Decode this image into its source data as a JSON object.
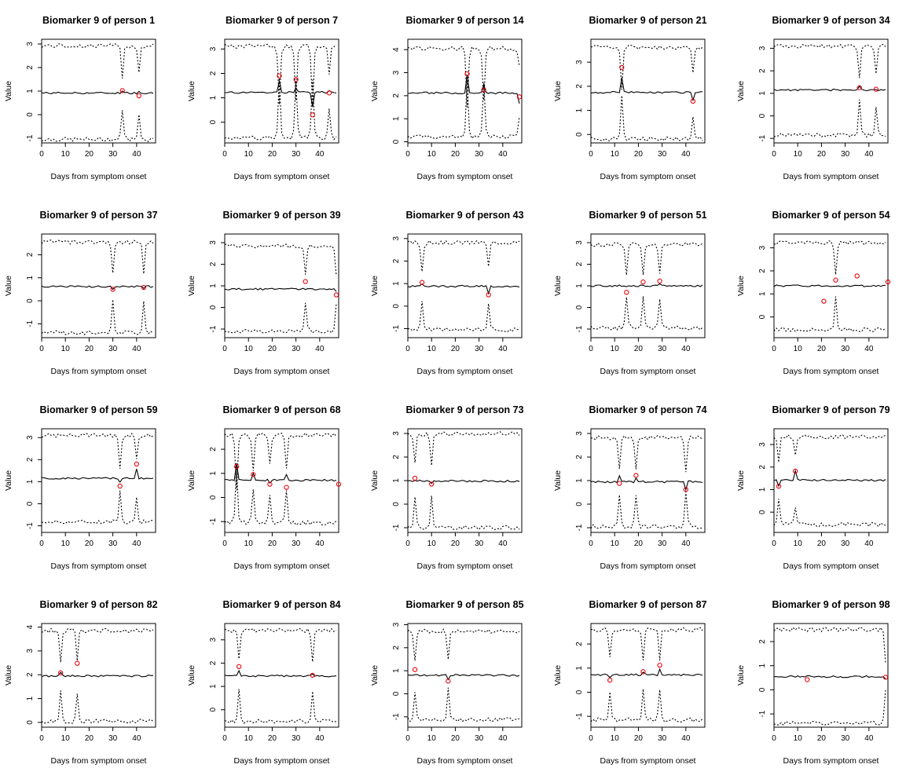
{
  "figure": {
    "xlabel": "Days from symptom onset",
    "ylabel": "Value"
  },
  "colors": {
    "observed": "#e8000b",
    "line": "#000000"
  },
  "chart_data": [
    {
      "type": "line",
      "title": "Biomarker 9 of person 1",
      "xlabel": "Days from symptom onset",
      "ylabel": "Value",
      "xlim": [
        0,
        48
      ],
      "ylim": [
        -1.2,
        3.2
      ],
      "xticks": [
        0,
        10,
        20,
        30,
        40
      ],
      "yticks": [
        -1,
        0,
        1,
        2,
        3
      ],
      "base": 0.92,
      "upper": 2.92,
      "lower": -1.05,
      "spikes": [
        [
          34,
          0.1,
          1.3
        ],
        [
          41,
          0.1,
          1.1
        ]
      ],
      "observed": {
        "x": [
          34,
          41
        ],
        "y": [
          1.02,
          0.8
        ]
      }
    },
    {
      "type": "line",
      "title": "Biomarker 9 of person 7",
      "xlabel": "Days from symptom onset",
      "ylabel": "Value",
      "xlim": [
        0,
        48
      ],
      "ylim": [
        -0.85,
        3.4
      ],
      "xticks": [
        0,
        10,
        20,
        30,
        40
      ],
      "yticks": [
        0,
        1,
        2,
        3
      ],
      "base": 1.22,
      "upper": 3.12,
      "lower": -0.65,
      "spikes": [
        [
          23,
          0.45,
          2.4
        ],
        [
          30,
          0.15,
          2.3
        ],
        [
          37,
          -0.6,
          2.4
        ],
        [
          44,
          0.05,
          1.2
        ]
      ],
      "observed": {
        "x": [
          23,
          30,
          37,
          44
        ],
        "y": [
          1.9,
          1.75,
          0.3,
          1.2
        ]
      }
    },
    {
      "type": "line",
      "title": "Biomarker 9 of person 14",
      "xlabel": "Days from symptom onset",
      "ylabel": "Value",
      "xlim": [
        0,
        48
      ],
      "ylim": [
        -0.05,
        4.45
      ],
      "xticks": [
        0,
        10,
        20,
        30,
        40
      ],
      "yticks": [
        0,
        1,
        2,
        3,
        4
      ],
      "base": 2.12,
      "upper": 4.05,
      "lower": 0.22,
      "spikes": [
        [
          25,
          0.8,
          2.5
        ],
        [
          32,
          0.35,
          2.3
        ],
        [
          47,
          -0.5,
          0.8
        ]
      ],
      "observed": {
        "x": [
          25,
          32,
          47
        ],
        "y": [
          2.95,
          2.25,
          1.95
        ]
      }
    },
    {
      "type": "line",
      "title": "Biomarker 9 of person 21",
      "xlabel": "Days from symptom onset",
      "ylabel": "Value",
      "xlim": [
        0,
        48
      ],
      "ylim": [
        -0.35,
        3.95
      ],
      "xticks": [
        0,
        10,
        20,
        30,
        40
      ],
      "yticks": [
        0,
        1,
        2,
        3
      ],
      "base": 1.75,
      "upper": 3.62,
      "lower": -0.18,
      "spikes": [
        [
          13,
          0.6,
          1.8
        ],
        [
          43,
          -0.3,
          1.0
        ]
      ],
      "observed": {
        "x": [
          13,
          43
        ],
        "y": [
          2.78,
          1.38
        ]
      }
    },
    {
      "type": "line",
      "title": "Biomarker 9 of person 34",
      "xlabel": "Days from symptom onset",
      "ylabel": "Value",
      "xlim": [
        0,
        48
      ],
      "ylim": [
        -1.2,
        3.4
      ],
      "xticks": [
        0,
        10,
        20,
        30,
        40
      ],
      "yticks": [
        -1,
        0,
        1,
        2,
        3
      ],
      "base": 1.15,
      "upper": 3.1,
      "lower": -0.85,
      "spikes": [
        [
          36,
          0.2,
          1.5
        ],
        [
          43,
          0.05,
          1.3
        ]
      ],
      "observed": {
        "x": [
          36,
          43
        ],
        "y": [
          1.25,
          1.18
        ]
      }
    },
    {
      "type": "line",
      "title": "Biomarker 9 of person 37",
      "xlabel": "Days from symptom onset",
      "ylabel": "Value",
      "xlim": [
        0,
        48
      ],
      "ylim": [
        -1.6,
        2.9
      ],
      "xticks": [
        0,
        10,
        20,
        30,
        40
      ],
      "yticks": [
        -1,
        0,
        1,
        2
      ],
      "base": 0.62,
      "upper": 2.55,
      "lower": -1.38,
      "spikes": [
        [
          30,
          -0.1,
          1.4
        ],
        [
          43,
          -0.05,
          1.4
        ]
      ],
      "observed": {
        "x": [
          30,
          43
        ],
        "y": [
          0.5,
          0.58
        ]
      }
    },
    {
      "type": "line",
      "title": "Biomarker 9 of person 39",
      "xlabel": "Days from symptom onset",
      "ylabel": "Value",
      "xlim": [
        0,
        48
      ],
      "ylim": [
        -1.4,
        3.4
      ],
      "xticks": [
        0,
        10,
        20,
        30,
        40
      ],
      "yticks": [
        -1,
        0,
        1,
        2,
        3
      ],
      "base": 0.85,
      "upper": 2.85,
      "lower": -1.1,
      "spikes": [
        [
          34,
          0.0,
          1.4
        ],
        [
          47,
          -0.1,
          1.3
        ]
      ],
      "observed": {
        "x": [
          34,
          47
        ],
        "y": [
          1.2,
          0.58
        ]
      }
    },
    {
      "type": "line",
      "title": "Biomarker 9 of person 43",
      "xlabel": "Days from symptom onset",
      "ylabel": "Value",
      "xlim": [
        0,
        48
      ],
      "ylim": [
        -1.4,
        3.2
      ],
      "xticks": [
        0,
        10,
        20,
        30,
        40
      ],
      "yticks": [
        -1,
        0,
        1,
        2,
        3
      ],
      "base": 0.88,
      "upper": 2.82,
      "lower": -1.05,
      "spikes": [
        [
          6,
          0.1,
          1.3
        ],
        [
          34,
          -0.35,
          1.1
        ]
      ],
      "observed": {
        "x": [
          6,
          34
        ],
        "y": [
          1.05,
          0.5
        ]
      }
    },
    {
      "type": "line",
      "title": "Biomarker 9 of person 51",
      "xlabel": "Days from symptom onset",
      "ylabel": "Value",
      "xlim": [
        0,
        48
      ],
      "ylim": [
        -1.4,
        3.4
      ],
      "xticks": [
        0,
        10,
        20,
        30,
        40
      ],
      "yticks": [
        -1,
        0,
        1,
        2,
        3
      ],
      "base": 1.0,
      "upper": 2.92,
      "lower": -0.95,
      "spikes": [
        [
          15,
          0.0,
          1.4
        ],
        [
          22,
          0.05,
          1.4
        ],
        [
          29,
          0.05,
          1.3
        ]
      ],
      "observed": {
        "x": [
          15,
          22,
          29
        ],
        "y": [
          0.7,
          1.18,
          1.22
        ]
      }
    },
    {
      "type": "line",
      "title": "Biomarker 9 of person 54",
      "xlabel": "Days from symptom onset",
      "ylabel": "Value",
      "xlim": [
        0,
        48
      ],
      "ylim": [
        -0.9,
        3.6
      ],
      "xticks": [
        0,
        10,
        20,
        30,
        40
      ],
      "yticks": [
        0,
        1,
        2,
        3
      ],
      "base": 1.35,
      "upper": 3.22,
      "lower": -0.55,
      "spikes": [
        [
          26,
          0.0,
          1.4
        ]
      ],
      "observed": {
        "x": [
          21,
          26,
          35,
          48
        ],
        "y": [
          0.68,
          1.6,
          1.78,
          1.52
        ]
      }
    },
    {
      "type": "line",
      "title": "Biomarker 9 of person 59",
      "xlabel": "Days from symptom onset",
      "ylabel": "Value",
      "xlim": [
        0,
        48
      ],
      "ylim": [
        -1.3,
        3.4
      ],
      "xticks": [
        0,
        10,
        20,
        30,
        40
      ],
      "yticks": [
        -1,
        0,
        1,
        2,
        3
      ],
      "base": 1.15,
      "upper": 3.1,
      "lower": -0.82,
      "spikes": [
        [
          33,
          -0.15,
          1.5
        ],
        [
          40,
          0.4,
          1.1
        ]
      ],
      "observed": {
        "x": [
          33,
          40
        ],
        "y": [
          0.8,
          1.8
        ]
      }
    },
    {
      "type": "line",
      "title": "Biomarker 9 of person 68",
      "xlabel": "Days from symptom onset",
      "ylabel": "Value",
      "xlim": [
        0,
        48
      ],
      "ylim": [
        -1.45,
        2.85
      ],
      "xticks": [
        0,
        10,
        20,
        30,
        40
      ],
      "yticks": [
        -1,
        0,
        1,
        2
      ],
      "base": 0.72,
      "upper": 2.58,
      "lower": -1.05,
      "spikes": [
        [
          5,
          0.7,
          2.3
        ],
        [
          12,
          0.25,
          1.4
        ],
        [
          19,
          -0.1,
          1.2
        ],
        [
          26,
          0.25,
          1.3
        ]
      ],
      "observed": {
        "x": [
          5,
          12,
          19,
          26,
          48
        ],
        "y": [
          1.28,
          0.95,
          0.55,
          0.42,
          0.55
        ]
      }
    },
    {
      "type": "line",
      "title": "Biomarker 9 of person 73",
      "xlabel": "Days from symptom onset",
      "ylabel": "Value",
      "xlim": [
        0,
        48
      ],
      "ylim": [
        -1.2,
        3.2
      ],
      "xticks": [
        0,
        10,
        20,
        30,
        40
      ],
      "yticks": [
        -1,
        0,
        1,
        2,
        3
      ],
      "base": 0.98,
      "upper": 2.98,
      "lower": -1.0,
      "spikes": [
        [
          3,
          0.05,
          1.3
        ],
        [
          10,
          -0.1,
          1.4
        ]
      ],
      "observed": {
        "x": [
          3,
          10
        ],
        "y": [
          1.1,
          0.85
        ]
      }
    },
    {
      "type": "line",
      "title": "Biomarker 9 of person 74",
      "xlabel": "Days from symptom onset",
      "ylabel": "Value",
      "xlim": [
        0,
        48
      ],
      "ylim": [
        -1.2,
        3.2
      ],
      "xticks": [
        0,
        10,
        20,
        30,
        40
      ],
      "yticks": [
        -1,
        0,
        1,
        2,
        3
      ],
      "base": 0.95,
      "upper": 2.82,
      "lower": -0.95,
      "spikes": [
        [
          12,
          0.25,
          1.3
        ],
        [
          19,
          0.15,
          1.4
        ],
        [
          40,
          -0.35,
          1.4
        ]
      ],
      "observed": {
        "x": [
          12,
          19,
          40
        ],
        "y": [
          0.88,
          1.22,
          0.62
        ]
      }
    },
    {
      "type": "line",
      "title": "Biomarker 9 of person 79",
      "xlabel": "Days from symptom onset",
      "ylabel": "Value",
      "xlim": [
        0,
        48
      ],
      "ylim": [
        -0.9,
        3.7
      ],
      "xticks": [
        0,
        10,
        20,
        30,
        40
      ],
      "yticks": [
        0,
        1,
        2,
        3
      ],
      "base": 1.42,
      "upper": 3.35,
      "lower": -0.55,
      "spikes": [
        [
          2,
          -0.3,
          1.2
        ],
        [
          9,
          0.45,
          0.8
        ]
      ],
      "observed": {
        "x": [
          2,
          9
        ],
        "y": [
          1.15,
          1.82
        ]
      }
    },
    {
      "type": "line",
      "title": "Biomarker 9 of person 82",
      "xlabel": "Days from symptom onset",
      "ylabel": "Value",
      "xlim": [
        0,
        48
      ],
      "ylim": [
        -0.2,
        4.15
      ],
      "xticks": [
        0,
        10,
        20,
        30,
        40
      ],
      "yticks": [
        0,
        1,
        2,
        3,
        4
      ],
      "base": 1.95,
      "upper": 3.85,
      "lower": 0.05,
      "spikes": [
        [
          8,
          0.15,
          1.3
        ],
        [
          15,
          0.0,
          1.2
        ]
      ],
      "observed": {
        "x": [
          8,
          15
        ],
        "y": [
          2.08,
          2.48
        ]
      }
    },
    {
      "type": "line",
      "title": "Biomarker 9 of person 84",
      "xlabel": "Days from symptom onset",
      "ylabel": "Value",
      "xlim": [
        0,
        48
      ],
      "ylim": [
        -0.75,
        3.7
      ],
      "xticks": [
        0,
        10,
        20,
        30,
        40
      ],
      "yticks": [
        0,
        1,
        2,
        3
      ],
      "base": 1.45,
      "upper": 3.4,
      "lower": -0.5,
      "spikes": [
        [
          6,
          0.2,
          1.3
        ],
        [
          37,
          0.05,
          1.3
        ]
      ],
      "observed": {
        "x": [
          6,
          37
        ],
        "y": [
          1.85,
          1.48
        ]
      }
    },
    {
      "type": "line",
      "title": "Biomarker 9 of person 85",
      "xlabel": "Days from symptom onset",
      "ylabel": "Value",
      "xlim": [
        0,
        48
      ],
      "ylim": [
        -1.45,
        3.05
      ],
      "xticks": [
        0,
        10,
        20,
        30,
        40
      ],
      "yticks": [
        -1,
        0,
        1,
        2,
        3
      ],
      "base": 0.8,
      "upper": 2.72,
      "lower": -1.12,
      "spikes": [
        [
          3,
          0.05,
          1.2
        ],
        [
          17,
          -0.2,
          1.3
        ]
      ],
      "observed": {
        "x": [
          3,
          17
        ],
        "y": [
          1.05,
          0.55
        ]
      }
    },
    {
      "type": "line",
      "title": "Biomarker 9 of person 87",
      "xlabel": "Days from symptom onset",
      "ylabel": "Value",
      "xlim": [
        0,
        48
      ],
      "ylim": [
        -1.45,
        2.85
      ],
      "xticks": [
        0,
        10,
        20,
        30,
        40
      ],
      "yticks": [
        -1,
        0,
        1,
        2
      ],
      "base": 0.72,
      "upper": 2.6,
      "lower": -1.15,
      "spikes": [
        [
          8,
          -0.1,
          1.2
        ],
        [
          22,
          0.1,
          1.2
        ],
        [
          29,
          0.2,
          1.2
        ]
      ],
      "observed": {
        "x": [
          8,
          22,
          29
        ],
        "y": [
          0.5,
          0.85,
          1.12
        ]
      }
    },
    {
      "type": "line",
      "title": "Biomarker 9 of person 98",
      "xlabel": "Days from symptom onset",
      "ylabel": "Value",
      "xlim": [
        0,
        48
      ],
      "ylim": [
        -1.55,
        2.75
      ],
      "xticks": [
        0,
        10,
        20,
        30,
        40
      ],
      "yticks": [
        -1,
        0,
        1,
        2
      ],
      "base": 0.55,
      "upper": 2.5,
      "lower": -1.38,
      "spikes": [
        [
          47,
          -0.05,
          1.3
        ]
      ],
      "observed": {
        "x": [
          14,
          47
        ],
        "y": [
          0.42,
          0.52
        ]
      }
    }
  ]
}
